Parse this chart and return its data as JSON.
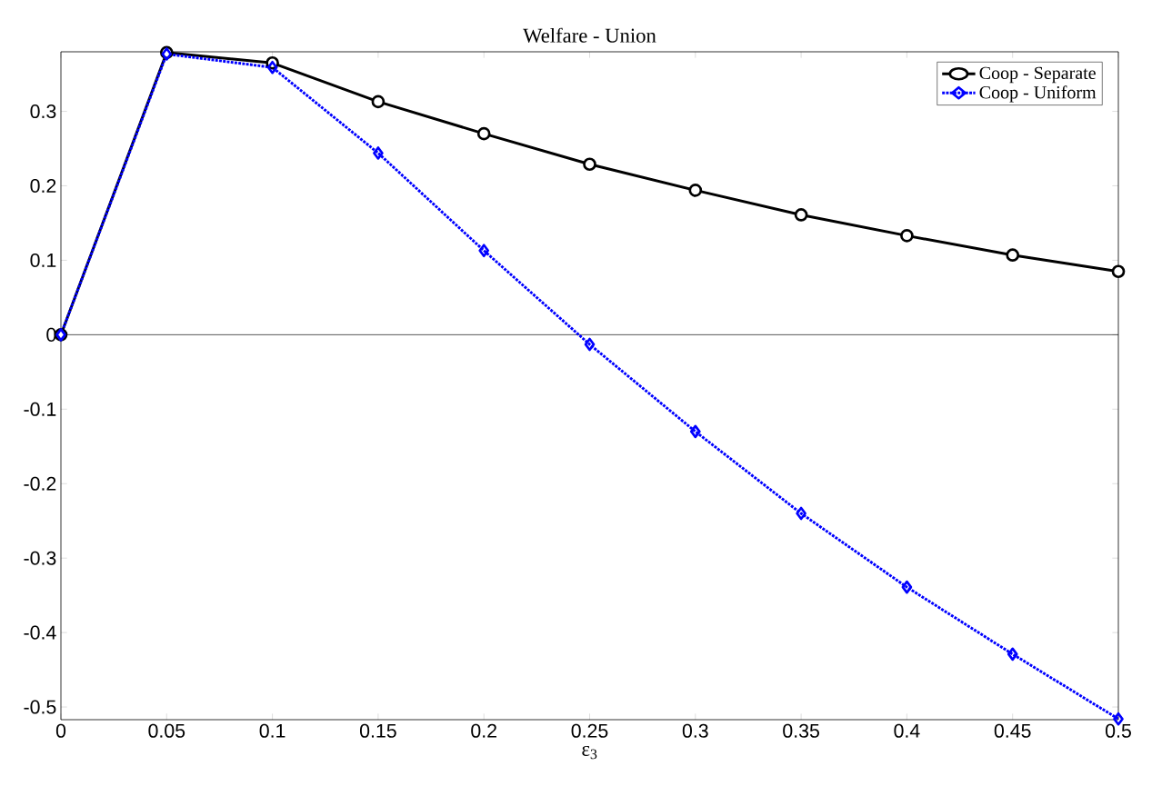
{
  "chart_data": {
    "type": "line",
    "title": "Welfare - Union",
    "xlabel": "ε$_{3}$",
    "x": [
      0,
      0.05,
      0.1,
      0.15,
      0.2,
      0.25,
      0.3,
      0.35,
      0.4,
      0.45,
      0.5
    ],
    "series": [
      {
        "name": "Coop - Separate",
        "color": "#000000",
        "marker": "circle",
        "line_style": "solid",
        "values": [
          0,
          0.379,
          0.365,
          0.313,
          0.27,
          0.229,
          0.194,
          0.161,
          0.133,
          0.107,
          0.085
        ]
      },
      {
        "name": "Coop - Uniform",
        "color": "#0000ff",
        "marker": "diamond",
        "line_style": "dotted",
        "values": [
          0,
          0.377,
          0.359,
          0.244,
          0.113,
          -0.013,
          -0.13,
          -0.24,
          -0.339,
          -0.429,
          -0.516
        ]
      }
    ],
    "xlim": [
      0,
      0.5
    ],
    "ylim": [
      -0.517,
      0.38
    ],
    "xticks": [
      0,
      0.05,
      0.1,
      0.15,
      0.2,
      0.25,
      0.3,
      0.35,
      0.4,
      0.45,
      0.5
    ],
    "yticks": [
      -0.5,
      -0.4,
      -0.3,
      -0.2,
      -0.1,
      0,
      0.1,
      0.2,
      0.3
    ],
    "ref_lines": [
      {
        "axis": "y",
        "value": 0,
        "color": "#000000",
        "line_style": "solid"
      }
    ],
    "legend": "top right",
    "grid": false
  }
}
